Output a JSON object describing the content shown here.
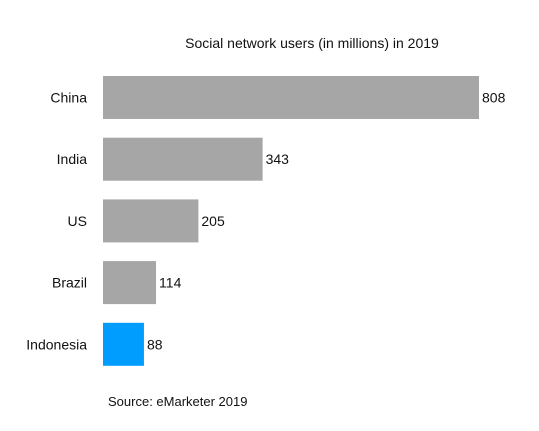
{
  "chart_data": {
    "type": "bar",
    "orientation": "horizontal",
    "title": "Social network users (in millions) in 2019",
    "categories": [
      "China",
      "India",
      "US",
      "Brazil",
      "Indonesia"
    ],
    "values": [
      808,
      343,
      205,
      114,
      88
    ],
    "value_labels": [
      "808",
      "343",
      "205",
      "114",
      "88"
    ],
    "xlabel": "",
    "ylabel": "",
    "xlim": [
      0,
      808
    ],
    "grid": false,
    "legend": "none",
    "highlight_index": 4
  },
  "source": "Source: eMarketer 2019",
  "colors": {
    "bar_default": "#a6a6a6",
    "bar_highlight": "#009dff",
    "text": "#111111"
  }
}
